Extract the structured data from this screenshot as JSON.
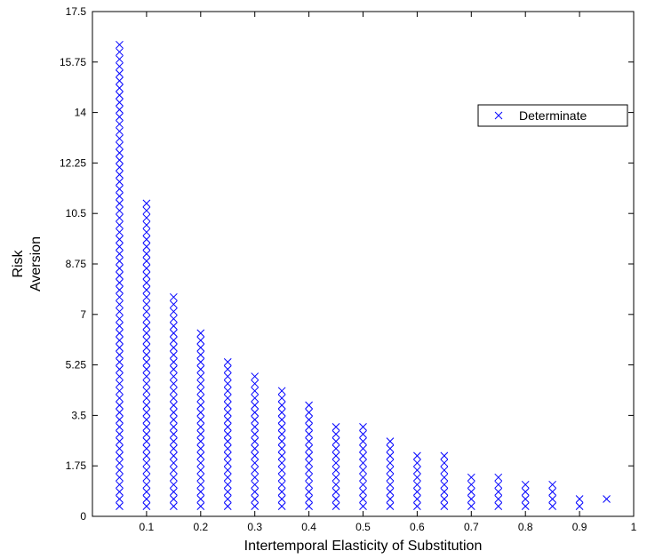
{
  "chart_data": {
    "type": "scatter",
    "xlabel": "Intertemporal Elasticity of Substitution",
    "ylabel_lines": [
      "Risk",
      "Aversion"
    ],
    "xlim": [
      0,
      1
    ],
    "ylim": [
      0,
      17.5
    ],
    "x_ticks": [
      0.1,
      0.2,
      0.3,
      0.4,
      0.5,
      0.6,
      0.7,
      0.8,
      0.9,
      1
    ],
    "x_tick_labels": [
      "0.1",
      "0.2",
      "0.3",
      "0.4",
      "0.5",
      "0.6",
      "0.7",
      "0.8",
      "0.9",
      "1"
    ],
    "y_ticks": [
      0,
      1.75,
      3.5,
      5.25,
      7,
      8.75,
      10.5,
      12.25,
      14,
      15.75,
      17.5
    ],
    "y_tick_labels": [
      "0",
      "1.75",
      "3.5",
      "5.25",
      "7",
      "8.75",
      "10.5",
      "12.25",
      "14",
      "15.75",
      "17.5"
    ],
    "legend_position": "top-right",
    "marker": "x",
    "marker_color": "#0000ff",
    "series": [
      {
        "name": "Determinate",
        "columns": [
          {
            "x": 0.05,
            "y_start": 0.35,
            "y_step": 0.25,
            "y_end": 16.35
          },
          {
            "x": 0.1,
            "y_start": 0.35,
            "y_step": 0.25,
            "y_end": 10.85
          },
          {
            "x": 0.15,
            "y_start": 0.35,
            "y_step": 0.25,
            "y_end": 7.6
          },
          {
            "x": 0.2,
            "y_start": 0.35,
            "y_step": 0.25,
            "y_end": 6.35
          },
          {
            "x": 0.25,
            "y_start": 0.35,
            "y_step": 0.25,
            "y_end": 5.35
          },
          {
            "x": 0.3,
            "y_start": 0.35,
            "y_step": 0.25,
            "y_end": 4.85
          },
          {
            "x": 0.35,
            "y_start": 0.35,
            "y_step": 0.25,
            "y_end": 4.35
          },
          {
            "x": 0.4,
            "y_start": 0.35,
            "y_step": 0.25,
            "y_end": 3.85
          },
          {
            "x": 0.45,
            "y_start": 0.35,
            "y_step": 0.25,
            "y_end": 3.1
          },
          {
            "x": 0.5,
            "y_start": 0.35,
            "y_step": 0.25,
            "y_end": 3.1
          },
          {
            "x": 0.55,
            "y_start": 0.35,
            "y_step": 0.25,
            "y_end": 2.6
          },
          {
            "x": 0.6,
            "y_start": 0.35,
            "y_step": 0.25,
            "y_end": 2.1
          },
          {
            "x": 0.65,
            "y_start": 0.35,
            "y_step": 0.25,
            "y_end": 2.1
          },
          {
            "x": 0.7,
            "y_start": 0.35,
            "y_step": 0.25,
            "y_end": 1.35
          },
          {
            "x": 0.75,
            "y_start": 0.35,
            "y_step": 0.25,
            "y_end": 1.35
          },
          {
            "x": 0.8,
            "y_start": 0.35,
            "y_step": 0.25,
            "y_end": 1.1
          },
          {
            "x": 0.85,
            "y_start": 0.35,
            "y_step": 0.25,
            "y_end": 1.1
          },
          {
            "x": 0.9,
            "y_start": 0.35,
            "y_step": 0.25,
            "y_end": 0.6
          },
          {
            "x": 0.95,
            "y_start": 0.6,
            "y_step": 0.25,
            "y_end": 0.6
          }
        ]
      }
    ]
  }
}
